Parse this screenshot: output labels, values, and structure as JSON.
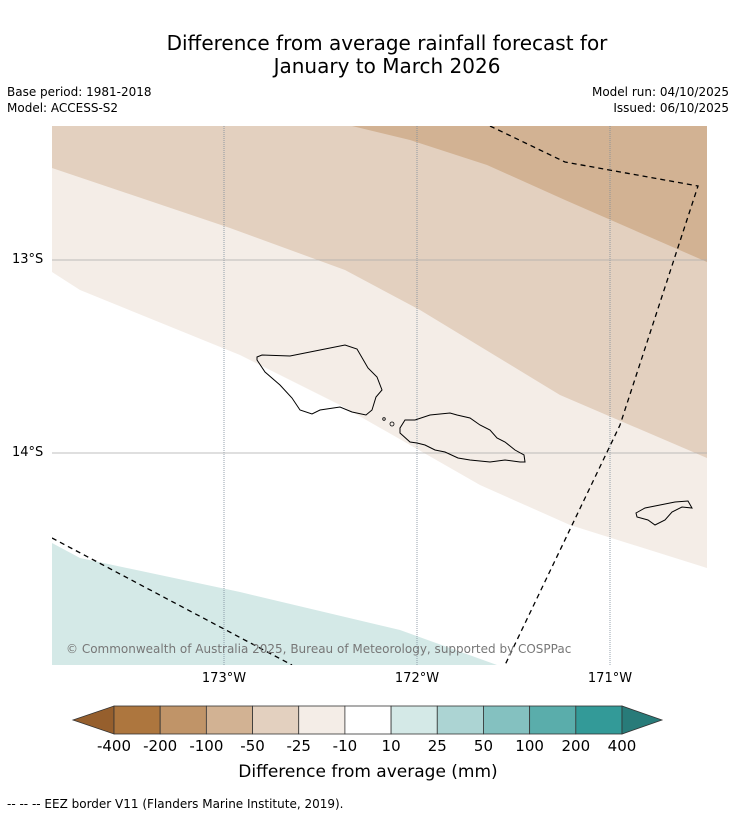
{
  "title": {
    "line1": "Difference from average rainfall forecast for",
    "line2": "January to March 2026"
  },
  "meta": {
    "base_period": "Base period: 1981-2018",
    "model": "Model: ACCESS-S2",
    "model_run": "Model run: 04/10/2025",
    "issued": "Issued: 06/10/2025"
  },
  "map": {
    "lat_labels": [
      "13°S",
      "14°S"
    ],
    "lon_labels": [
      "173°W",
      "172°W",
      "171°W"
    ],
    "copyright": "© Commonwealth of Australia 2025, Bureau of Meteorology, supported by COSPPac",
    "band_colors": {
      "m100_m50": "#d2b293",
      "m50_m25": "#e3d0bf",
      "m25_m10": "#f4ede7",
      "p10_p25": "#d4e9e7"
    }
  },
  "colorbar": {
    "ticks": [
      "-400",
      "-200",
      "-100",
      "-50",
      "-25",
      "-10",
      "10",
      "25",
      "50",
      "100",
      "200",
      "400"
    ],
    "colors": [
      "#965f2d",
      "#ad763e",
      "#c09468",
      "#d2b293",
      "#e3d0bf",
      "#f4ede7",
      "#ffffff",
      "#d4e9e7",
      "#acd4d3",
      "#84c1c0",
      "#5aadab",
      "#339a98",
      "#287b79"
    ],
    "label": "Difference from average (mm)"
  },
  "legend_footer": "--  --  -- EEZ border V11 (Flanders Marine Institute, 2019)."
}
